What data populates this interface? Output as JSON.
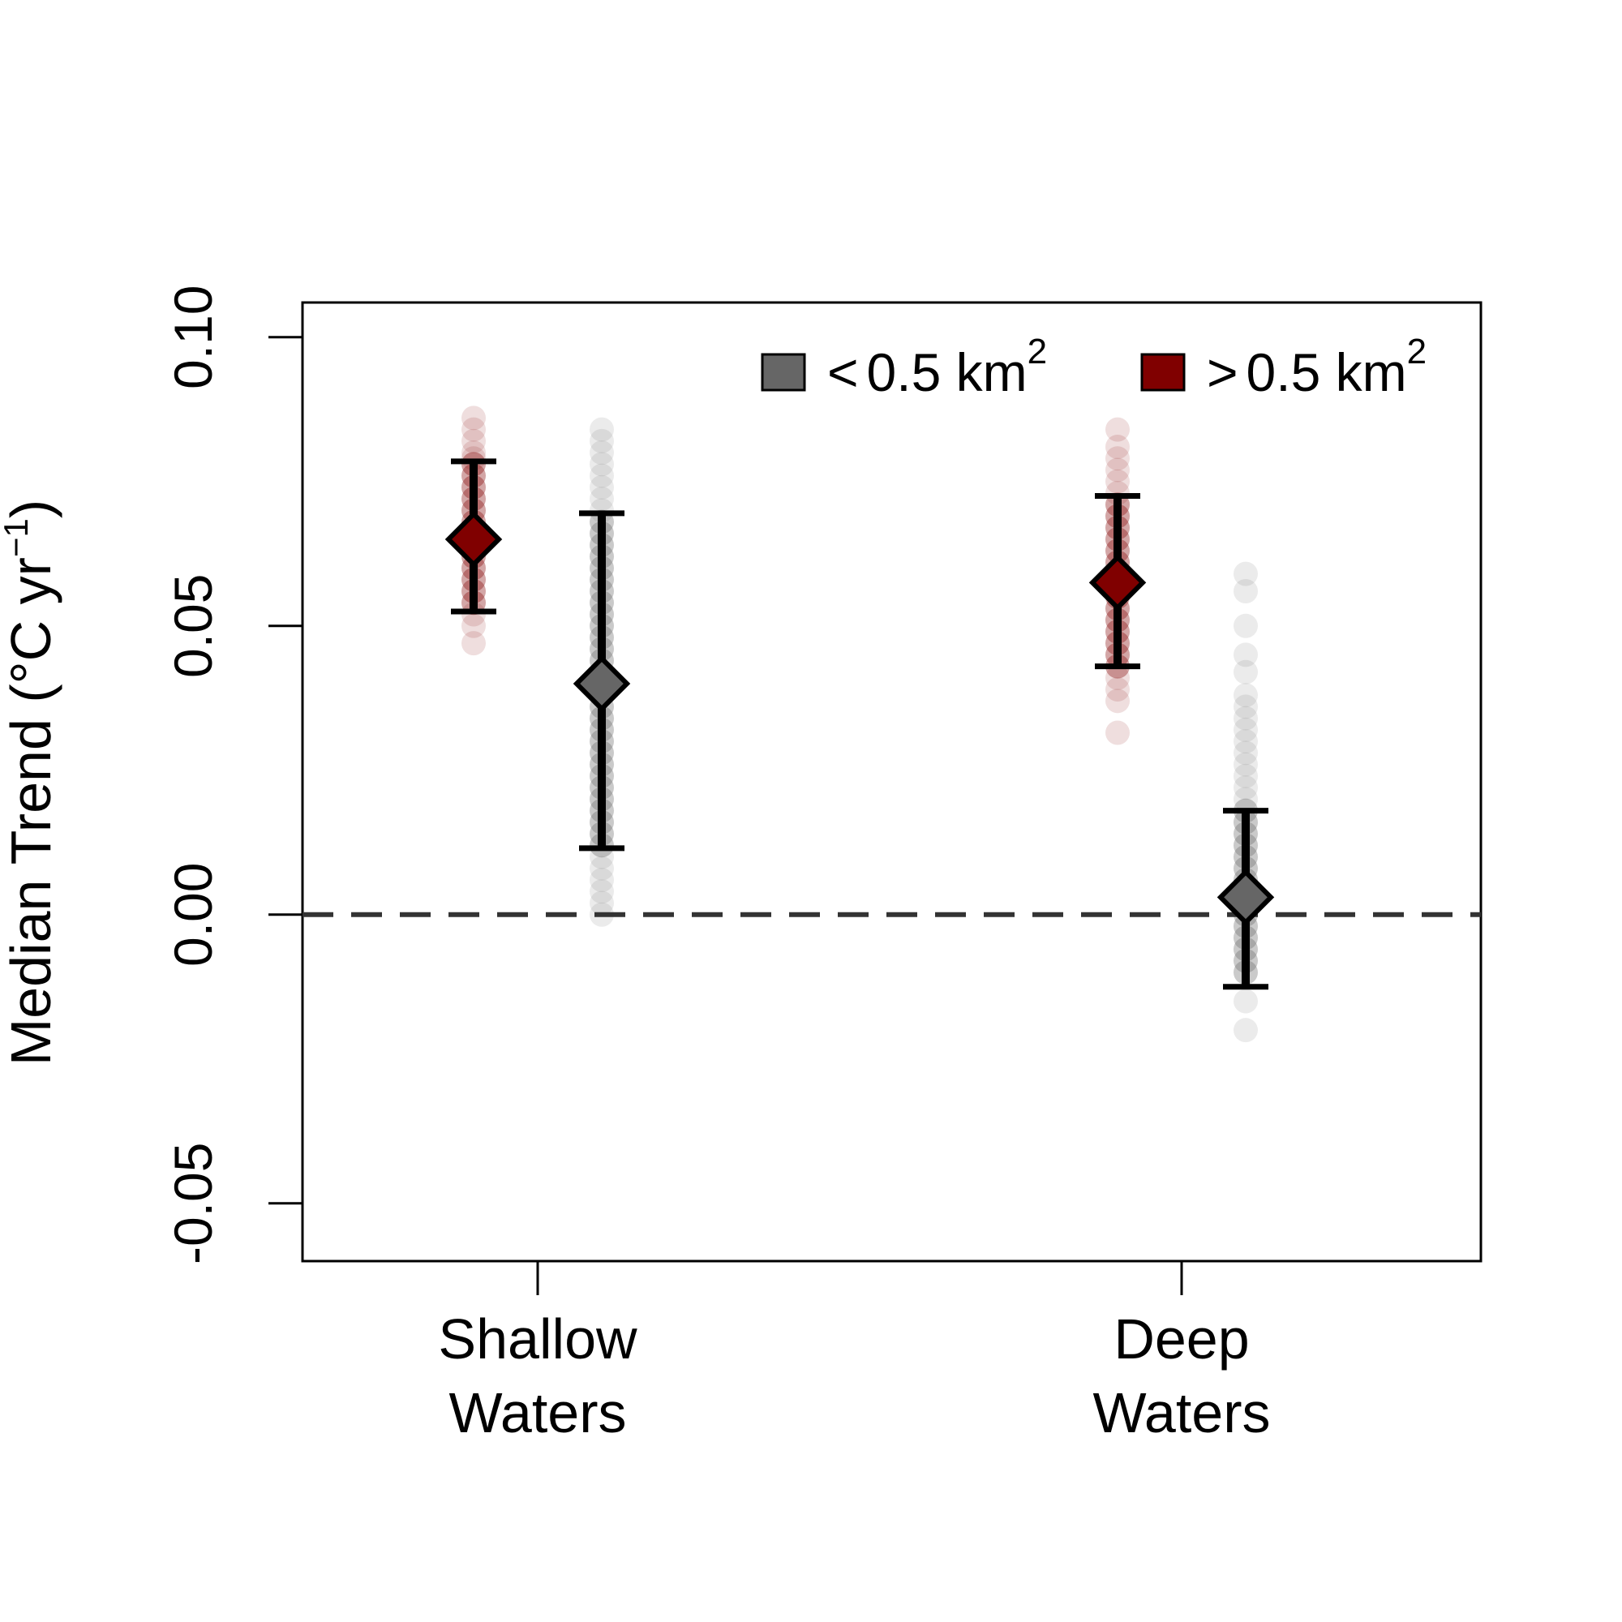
{
  "chart_data": {
    "type": "scatter",
    "title": "",
    "xlabel": "",
    "ylabel": {
      "main": "Median Trend (",
      "degree": "°",
      "unit": "C yr",
      "exponent": "−1",
      "close": ")"
    },
    "ylim": [
      -0.06,
      0.106
    ],
    "yticks": [
      "-0.05",
      "0.00",
      "0.05",
      "0.10"
    ],
    "ytick_values": [
      -0.05,
      0.0,
      0.05,
      0.1
    ],
    "categories": [
      {
        "line1": "Shallow",
        "line2": "Waters"
      },
      {
        "line1": "Deep",
        "line2": "Waters"
      }
    ],
    "reference_line": {
      "y": 0.0,
      "style": "dashed",
      "color": "#333333"
    },
    "legend": {
      "placement": "top-right",
      "entries": [
        {
          "symbol": "<",
          "label": "0.5 km",
          "superscript": "2",
          "color": "#666666"
        },
        {
          "symbol": ">",
          "label": "0.5 km",
          "superscript": "2",
          "color": "#800000"
        }
      ]
    },
    "series": [
      {
        "key": "small",
        "color": "#666666",
        "groups": [
          {
            "category": 0,
            "median": 0.04,
            "lower": 0.0115,
            "upper": 0.0695,
            "points": [
              0.084,
              0.082,
              0.08,
              0.078,
              0.076,
              0.074,
              0.072,
              0.07,
              0.068,
              0.066,
              0.064,
              0.062,
              0.06,
              0.058,
              0.056,
              0.054,
              0.052,
              0.05,
              0.048,
              0.046,
              0.044,
              0.042,
              0.04,
              0.038,
              0.036,
              0.034,
              0.032,
              0.03,
              0.028,
              0.026,
              0.024,
              0.022,
              0.02,
              0.018,
              0.016,
              0.014,
              0.012,
              0.01,
              0.008,
              0.006,
              0.004,
              0.002,
              0.0
            ]
          },
          {
            "category": 1,
            "median": 0.003,
            "lower": -0.0125,
            "upper": 0.018,
            "points": [
              0.059,
              0.056,
              0.05,
              0.045,
              0.042,
              0.038,
              0.036,
              0.034,
              0.032,
              0.03,
              0.028,
              0.026,
              0.024,
              0.022,
              0.02,
              0.018,
              0.016,
              0.014,
              0.012,
              0.01,
              0.008,
              0.006,
              0.004,
              0.002,
              0.0,
              -0.002,
              -0.004,
              -0.006,
              -0.008,
              -0.01,
              -0.015,
              -0.02
            ]
          }
        ]
      },
      {
        "key": "large",
        "color": "#800000",
        "groups": [
          {
            "category": 0,
            "median": 0.065,
            "lower": 0.0525,
            "upper": 0.0785,
            "points": [
              0.086,
              0.084,
              0.082,
              0.08,
              0.079,
              0.078,
              0.076,
              0.074,
              0.072,
              0.07,
              0.068,
              0.066,
              0.064,
              0.062,
              0.06,
              0.058,
              0.056,
              0.054,
              0.052,
              0.05,
              0.047
            ]
          },
          {
            "category": 1,
            "median": 0.0575,
            "lower": 0.043,
            "upper": 0.0725,
            "points": [
              0.084,
              0.081,
              0.079,
              0.077,
              0.075,
              0.073,
              0.071,
              0.069,
              0.067,
              0.065,
              0.063,
              0.061,
              0.059,
              0.057,
              0.055,
              0.053,
              0.051,
              0.049,
              0.047,
              0.045,
              0.043,
              0.041,
              0.039,
              0.037,
              0.0315
            ]
          }
        ]
      }
    ]
  }
}
